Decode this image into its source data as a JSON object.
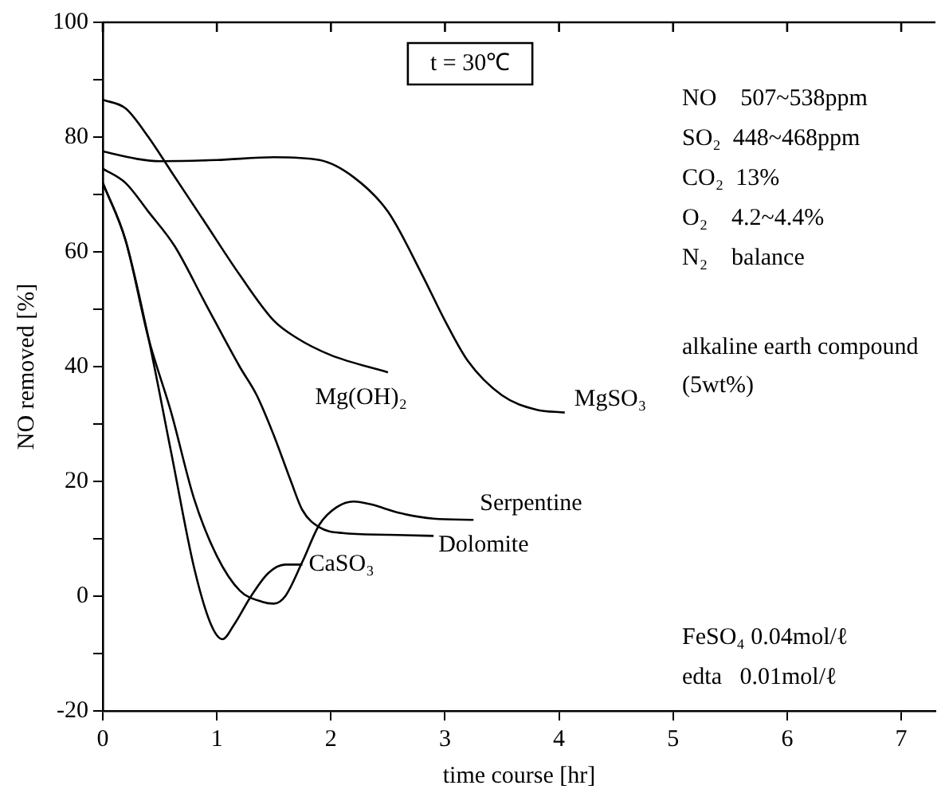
{
  "chart_data": {
    "type": "line",
    "xlabel": "time course [hr]",
    "ylabel": "NO removed [%]",
    "xlim": [
      0,
      7.3
    ],
    "xticks": [
      0,
      1,
      2,
      3,
      4,
      5,
      6,
      7
    ],
    "ylim": [
      -20,
      100
    ],
    "yticks": [
      -20,
      {
        "value": -10,
        "label": null
      },
      0,
      {
        "value": 10,
        "label": null
      },
      20,
      {
        "value": 30,
        "label": null
      },
      40,
      {
        "value": 50,
        "label": null
      },
      60,
      {
        "value": 70,
        "label": null
      },
      80,
      {
        "value": 90,
        "label": null
      },
      100
    ],
    "grid": false,
    "legend": false,
    "marker": "none",
    "line_style": "solid",
    "series": [
      {
        "name": "Mg(OH)₂",
        "color": "#000000",
        "x": [
          0,
          0.2,
          0.4,
          0.6,
          0.9,
          1.2,
          1.5,
          1.7,
          2.0,
          2.5
        ],
        "values": [
          86.5,
          85,
          80,
          74,
          65,
          56,
          48,
          45,
          42,
          39
        ]
      },
      {
        "name": "MgSO₃",
        "color": "#000000",
        "x": [
          0,
          0.3,
          0.5,
          1,
          1.5,
          1.9,
          2.2,
          2.5,
          2.8,
          3.0,
          3.2,
          3.5,
          3.8,
          4.05
        ],
        "values": [
          77.5,
          76.2,
          75.8,
          76,
          76.5,
          76,
          73,
          67,
          56,
          48,
          41,
          35,
          32.5,
          32
        ]
      },
      {
        "name": "Serpentine",
        "color": "#000000",
        "x": [
          0,
          0.2,
          0.4,
          0.6,
          0.8,
          1.0,
          1.2,
          1.4,
          1.5,
          1.6,
          1.75,
          1.9,
          2.05,
          2.2,
          2.35,
          2.6,
          2.9,
          3.25
        ],
        "values": [
          72,
          62,
          45,
          32,
          17,
          7,
          1,
          -1,
          -1.3,
          0,
          6,
          12.5,
          15.5,
          16.5,
          16,
          14.5,
          13.5,
          13.3
        ]
      },
      {
        "name": "Dolomite",
        "color": "#000000",
        "x": [
          0,
          0.2,
          0.4,
          0.63,
          0.9,
          1.2,
          1.35,
          1.5,
          1.65,
          1.75,
          1.9,
          2.1,
          2.5,
          2.9
        ],
        "values": [
          74.5,
          72,
          67,
          61,
          51,
          40,
          35,
          28,
          20,
          15,
          12,
          11,
          10.7,
          10.5
        ]
      },
      {
        "name": "CaSO₃",
        "color": "#000000",
        "x": [
          0,
          0.2,
          0.4,
          0.6,
          0.8,
          0.95,
          1.05,
          1.15,
          1.3,
          1.45,
          1.6,
          1.75
        ],
        "values": [
          72,
          62,
          45,
          25,
          5,
          -5,
          -7.5,
          -5,
          0,
          4,
          5.5,
          5.5
        ]
      }
    ],
    "annotations": [
      "t = 30℃",
      "NO    507~538ppm",
      "SO₂  448~468ppm",
      "CO₂  13%",
      "O₂    4.2~4.4%",
      "N₂    balance",
      "alkaline earth compound (5wt%)",
      "FeSO₄ 0.04mol/ℓ",
      "edta   0.01mol/ℓ"
    ]
  }
}
